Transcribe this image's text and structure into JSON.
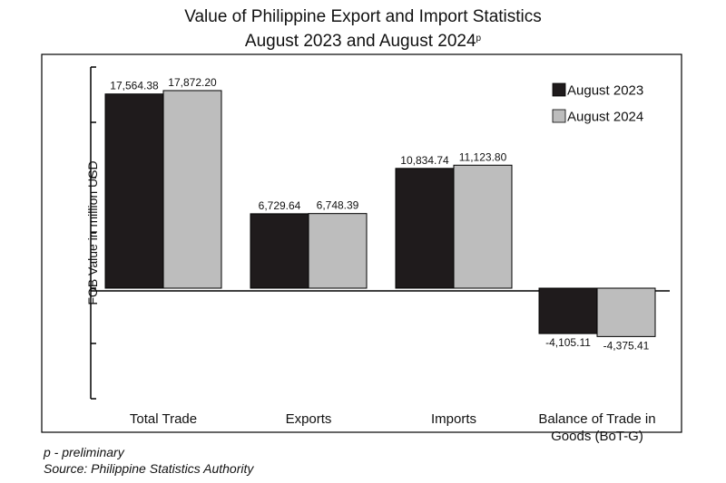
{
  "title_line1": "Value of Philippine Export and Import Statistics",
  "title_line2": "August 2023 and August 2024",
  "title_superscript": "p",
  "footnote": "p - preliminary",
  "source": "Source: Philippine Statistics Authority",
  "chart_data": {
    "type": "bar",
    "categories": [
      "Total Trade",
      "Exports",
      "Imports",
      "Balance of Trade in\nGoods (BoT-G)"
    ],
    "series": [
      {
        "name": "August 2023",
        "values": [
          17564.38,
          6729.64,
          10834.74,
          -4105.11
        ],
        "color": "#1f1b1c"
      },
      {
        "name": "August 2024",
        "values": [
          17872.2,
          6748.39,
          11123.8,
          -4375.41
        ],
        "color": "#bdbdbd"
      }
    ],
    "data_labels": [
      [
        "17,564.38",
        "6,729.64",
        "10,834.74",
        "-4,105.11"
      ],
      [
        "17,872.20",
        "6,748.39",
        "11,123.80",
        "-4,375.41"
      ]
    ],
    "ylabel": "FOB Value in million USD",
    "ylim": [
      -10000,
      20000
    ],
    "y_tick_step": 5000,
    "y_tick_labels_shown": false,
    "legend_position": "top-right",
    "grid": false
  }
}
